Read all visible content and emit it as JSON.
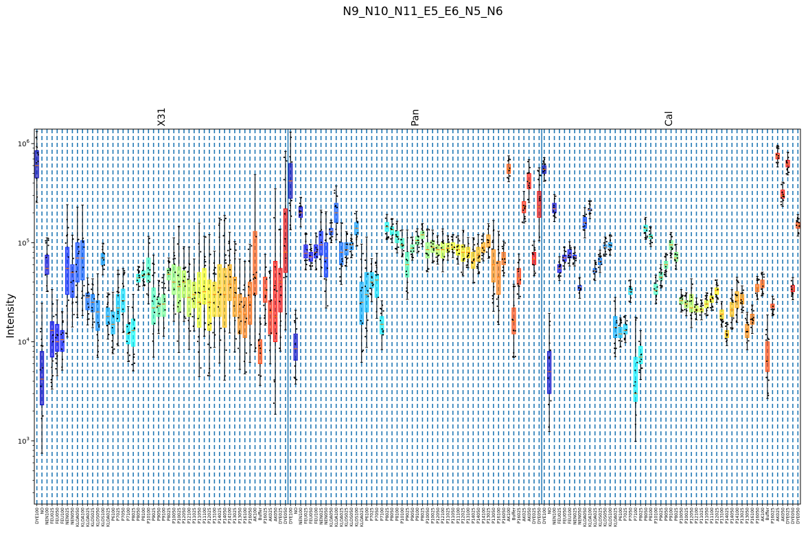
{
  "chart_data": {
    "type": "box",
    "title": "N9_N10_N11_E5_E6_N5_N6",
    "ylabel": "Intensity",
    "yscale": "log",
    "ylim": [
      230,
      1400000
    ],
    "yticks": [
      {
        "value": 1000,
        "base": "10",
        "exp": "3"
      },
      {
        "value": 10000,
        "base": "10",
        "exp": "4"
      },
      {
        "value": 100000,
        "base": "10",
        "exp": "5"
      },
      {
        "value": 1000000,
        "base": "10",
        "exp": "6"
      }
    ],
    "grid": "vertical dashed",
    "groups": [
      {
        "name": "X31",
        "categories": [
          "DYE100",
          "NO",
          "NEN100",
          "FEU025",
          "FEU050",
          "FEU100",
          "NEN025",
          "NEN050",
          "KLOA050",
          "KLOA100",
          "KLOA025",
          "KLOS025",
          "KLOS050",
          "KLOS100",
          "KLOA025",
          "P6100",
          "P7025",
          "P7050",
          "P7100",
          "P8025",
          "P8050",
          "P8100",
          "P10100",
          "P9025",
          "P9050",
          "P9100",
          "P8025",
          "P10050",
          "P10025",
          "P12050",
          "P12100",
          "P11025",
          "P11050",
          "P11100",
          "P12025",
          "P13100",
          "P14025",
          "P14050",
          "P14100",
          "P13025",
          "P13050",
          "P16100",
          "P16050",
          "AK100",
          "Buffer",
          "P16025",
          "AK025",
          "AK050",
          "DYE025",
          "DYE050"
        ],
        "boxes": [
          [
            450000,
            600000,
            850000
          ],
          [
            2300,
            4200,
            8000
          ],
          [
            48000,
            55000,
            75000
          ],
          [
            7000,
            13000,
            16000
          ],
          [
            8000,
            10000,
            15000
          ],
          [
            8000,
            10500,
            13000
          ],
          [
            30000,
            55000,
            90000
          ],
          [
            28000,
            50000,
            60000
          ],
          [
            40000,
            70000,
            100000
          ],
          [
            42000,
            70000,
            105000
          ],
          [
            21000,
            28000,
            31000
          ],
          [
            20000,
            25000,
            30000
          ],
          [
            13000,
            20000,
            26000
          ],
          [
            60000,
            70000,
            78000
          ],
          [
            15000,
            18000,
            22000
          ],
          [
            12000,
            15000,
            20000
          ],
          [
            16000,
            22000,
            30000
          ],
          [
            20000,
            26000,
            34000
          ],
          [
            9500,
            12000,
            15000
          ],
          [
            9000,
            13000,
            17000
          ],
          [
            40000,
            44000,
            48000
          ],
          [
            44000,
            47000,
            52000
          ],
          [
            40000,
            48000,
            70000
          ],
          [
            15000,
            22000,
            35000
          ],
          [
            18000,
            23000,
            28000
          ],
          [
            18000,
            24000,
            30000
          ],
          [
            42000,
            48000,
            55000
          ],
          [
            30000,
            40000,
            60000
          ],
          [
            20000,
            36000,
            57000
          ],
          [
            28000,
            40000,
            52000
          ],
          [
            18000,
            28000,
            42000
          ],
          [
            22000,
            30000,
            40000
          ],
          [
            14000,
            25000,
            50000
          ],
          [
            24000,
            32000,
            55000
          ],
          [
            13000,
            25000,
            42000
          ],
          [
            18000,
            30000,
            40000
          ],
          [
            18000,
            35000,
            60000
          ],
          [
            14000,
            30000,
            55000
          ],
          [
            26000,
            38000,
            60000
          ],
          [
            18000,
            28000,
            45000
          ],
          [
            12000,
            20000,
            30000
          ],
          [
            11000,
            19000,
            28000
          ],
          [
            15000,
            25000,
            40000
          ],
          [
            30000,
            45000,
            130000
          ],
          [
            6000,
            8500,
            10500
          ],
          [
            25000,
            33000,
            45000
          ],
          [
            12000,
            20000,
            26000
          ],
          [
            10000,
            18000,
            65000
          ],
          [
            20000,
            40000,
            55000
          ],
          [
            50000,
            80000,
            220000
          ]
        ]
      },
      {
        "name": "Pan",
        "categories": [
          "DYE100",
          "NO",
          "NEN100",
          "FEU025",
          "FEU050",
          "FEU100",
          "NEN025",
          "NEN050",
          "KLOA050",
          "KLOA100",
          "KLOA025",
          "KLOS025",
          "KLOS050",
          "KLOS100",
          "KLOA025",
          "P6100",
          "P7025",
          "P7050",
          "P7100",
          "P8025",
          "P8050",
          "P8100",
          "P10100",
          "P9025",
          "P9050",
          "P9100",
          "P8025",
          "P10050",
          "P10025",
          "P12050",
          "P12100",
          "P11025",
          "P11050",
          "P11100",
          "P12025",
          "P13100",
          "P14025",
          "P14050",
          "P14100",
          "P13025",
          "P13050",
          "P16100",
          "P16050",
          "AK100",
          "Buffer",
          "P16025",
          "AK025",
          "AK050",
          "DYE025",
          "DYE050"
        ],
        "boxes": [
          [
            280000,
            420000,
            630000
          ],
          [
            6500,
            8500,
            12000
          ],
          [
            180000,
            200000,
            230000
          ],
          [
            70000,
            78000,
            95000
          ],
          [
            65000,
            72000,
            80000
          ],
          [
            70000,
            80000,
            95000
          ],
          [
            75000,
            95000,
            130000
          ],
          [
            45000,
            70000,
            100000
          ],
          [
            120000,
            130000,
            140000
          ],
          [
            160000,
            200000,
            250000
          ],
          [
            60000,
            80000,
            100000
          ],
          [
            75000,
            85000,
            100000
          ],
          [
            85000,
            95000,
            100000
          ],
          [
            120000,
            140000,
            160000
          ],
          [
            15000,
            25000,
            40000
          ],
          [
            20000,
            30000,
            50000
          ],
          [
            35000,
            40000,
            50000
          ],
          [
            28000,
            42000,
            48000
          ],
          [
            12000,
            15000,
            18000
          ],
          [
            130000,
            145000,
            160000
          ],
          [
            120000,
            135000,
            145000
          ],
          [
            100000,
            115000,
            130000
          ],
          [
            88000,
            95000,
            110000
          ],
          [
            45000,
            60000,
            80000
          ],
          [
            80000,
            88000,
            95000
          ],
          [
            95000,
            105000,
            115000
          ],
          [
            110000,
            120000,
            130000
          ],
          [
            70000,
            85000,
            100000
          ],
          [
            80000,
            90000,
            105000
          ],
          [
            75000,
            85000,
            95000
          ],
          [
            70000,
            85000,
            100000
          ],
          [
            80000,
            88000,
            98000
          ],
          [
            85000,
            90000,
            100000
          ],
          [
            75000,
            85000,
            95000
          ],
          [
            65000,
            80000,
            95000
          ],
          [
            70000,
            80000,
            90000
          ],
          [
            55000,
            65000,
            80000
          ],
          [
            65000,
            75000,
            90000
          ],
          [
            80000,
            90000,
            100000
          ],
          [
            90000,
            100000,
            120000
          ],
          [
            40000,
            60000,
            85000
          ],
          [
            30000,
            45000,
            65000
          ],
          [
            60000,
            70000,
            80000
          ],
          [
            500000,
            550000,
            620000
          ],
          [
            12000,
            16000,
            22000
          ],
          [
            38000,
            44000,
            55000
          ],
          [
            200000,
            230000,
            260000
          ],
          [
            350000,
            420000,
            500000
          ],
          [
            60000,
            68000,
            80000
          ],
          [
            180000,
            230000,
            330000
          ]
        ]
      },
      {
        "name": "Cal",
        "categories": [
          "DYE100",
          "NO",
          "NEN100",
          "FEU025",
          "FEU050",
          "FEU100",
          "NEN025",
          "NEN050",
          "KLOA050",
          "KLOA100",
          "KLOA025",
          "KLOS025",
          "KLOS050",
          "KLOS100",
          "KLOA025",
          "P6100",
          "P7025",
          "P7050",
          "P7100",
          "P8025",
          "P8050",
          "P8100",
          "P10100",
          "P9025",
          "P9050",
          "P9100",
          "P8025",
          "P10050",
          "P10025",
          "P12050",
          "P12100",
          "P11025",
          "P11050",
          "P11100",
          "P12025",
          "P13100",
          "P14025",
          "P14050",
          "P14100",
          "P13025",
          "P13050",
          "P16100",
          "P16050",
          "AK100",
          "Buffer",
          "P16025",
          "AK025",
          "AK050",
          "DYE025",
          "DYE050"
        ],
        "boxes": [
          [
            500000,
            550000,
            600000
          ],
          [
            3000,
            5000,
            8000
          ],
          [
            200000,
            220000,
            250000
          ],
          [
            50000,
            55000,
            60000
          ],
          [
            65000,
            70000,
            75000
          ],
          [
            70000,
            75000,
            85000
          ],
          [
            70000,
            72000,
            75000
          ],
          [
            33000,
            35000,
            37000
          ],
          [
            140000,
            160000,
            180000
          ],
          [
            210000,
            215000,
            220000
          ],
          [
            50000,
            52000,
            55000
          ],
          [
            60000,
            65000,
            70000
          ],
          [
            88000,
            90000,
            95000
          ],
          [
            90000,
            95000,
            100000
          ],
          [
            11000,
            14000,
            18000
          ],
          [
            11000,
            12000,
            14000
          ],
          [
            12000,
            13000,
            15000
          ],
          [
            30000,
            32000,
            35000
          ],
          [
            2500,
            3000,
            7000
          ],
          [
            6000,
            7000,
            9000
          ],
          [
            130000,
            140000,
            150000
          ],
          [
            110000,
            115000,
            120000
          ],
          [
            30000,
            33000,
            38000
          ],
          [
            42000,
            45000,
            50000
          ],
          [
            55000,
            60000,
            65000
          ],
          [
            85000,
            95000,
            105000
          ],
          [
            65000,
            70000,
            80000
          ],
          [
            24000,
            26000,
            28000
          ],
          [
            22000,
            24000,
            26000
          ],
          [
            20000,
            22000,
            30000
          ],
          [
            20000,
            21000,
            23000
          ],
          [
            20000,
            21000,
            22000
          ],
          [
            22000,
            24000,
            26000
          ],
          [
            25000,
            27000,
            29000
          ],
          [
            30000,
            33000,
            35000
          ],
          [
            17000,
            19000,
            21000
          ],
          [
            11000,
            12000,
            13000
          ],
          [
            18000,
            21000,
            25000
          ],
          [
            22000,
            26000,
            32000
          ],
          [
            24000,
            27000,
            30000
          ],
          [
            11000,
            13000,
            15000
          ],
          [
            15000,
            17000,
            19000
          ],
          [
            32000,
            35000,
            38000
          ],
          [
            35000,
            38000,
            42000
          ],
          [
            5000,
            6500,
            10000
          ],
          [
            22000,
            23000,
            24000
          ],
          [
            700000,
            750000,
            800000
          ],
          [
            280000,
            300000,
            340000
          ],
          [
            580000,
            620000,
            680000
          ],
          [
            32000,
            34000,
            37000
          ]
        ]
      }
    ],
    "trailing_categories": [
      "DYE050"
    ],
    "trailing_boxes": [
      [
        140000,
        150000,
        160000
      ]
    ]
  }
}
